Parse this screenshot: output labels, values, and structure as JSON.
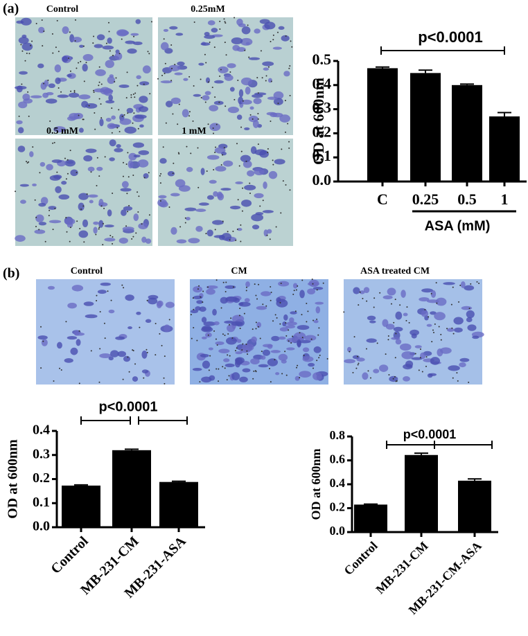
{
  "figure": {
    "panel_labels": [
      "(a)",
      "(b)"
    ],
    "image_labels_a": [
      "Control",
      "0.25mM",
      "0.5 mM",
      "1 mM"
    ],
    "image_labels_b": [
      "Control",
      "CM",
      "ASA treated CM"
    ]
  },
  "chart_data": [
    {
      "type": "bar",
      "ylabel": "OD at 600nm",
      "xlabel": "ASA (mM)",
      "annotation": "p<0.0001",
      "categories": [
        "C",
        "0.25",
        "0.5",
        "1"
      ],
      "values": [
        0.47,
        0.45,
        0.4,
        0.27
      ],
      "errors": [
        0.005,
        0.012,
        0.004,
        0.016
      ],
      "color": "#000000",
      "ylim": [
        0,
        0.5
      ],
      "yticks": [
        {
          "value": 0,
          "label": "0.0"
        },
        0.1,
        0.2,
        0.3,
        0.4,
        0.5
      ]
    },
    {
      "type": "bar",
      "ylabel": "OD at 600nm",
      "annotation": "p<0.0001",
      "categories": [
        "Control",
        "MB-231-CM",
        "MB-231-ASA"
      ],
      "values": [
        0.173,
        0.32,
        0.188
      ],
      "errors": [
        0.003,
        0.004,
        0.003
      ],
      "color": "#000000",
      "ylim": [
        0,
        0.4
      ],
      "yticks": [
        {
          "value": 0,
          "label": "0.0"
        },
        0.1,
        0.2,
        0.3,
        0.4
      ]
    },
    {
      "type": "bar",
      "ylabel": "OD at 600nm",
      "annotation": "p<0.0001",
      "categories": [
        "Control",
        "MB-231-CM",
        "MB-231-CM-ASA"
      ],
      "values": [
        0.23,
        0.645,
        0.43
      ],
      "errors": [
        0.004,
        0.015,
        0.015
      ],
      "color": "#000000",
      "ylim": [
        0,
        0.8
      ],
      "yticks": [
        {
          "value": 0,
          "label": "0.0"
        },
        0.2,
        0.4,
        0.6,
        0.8
      ]
    }
  ]
}
